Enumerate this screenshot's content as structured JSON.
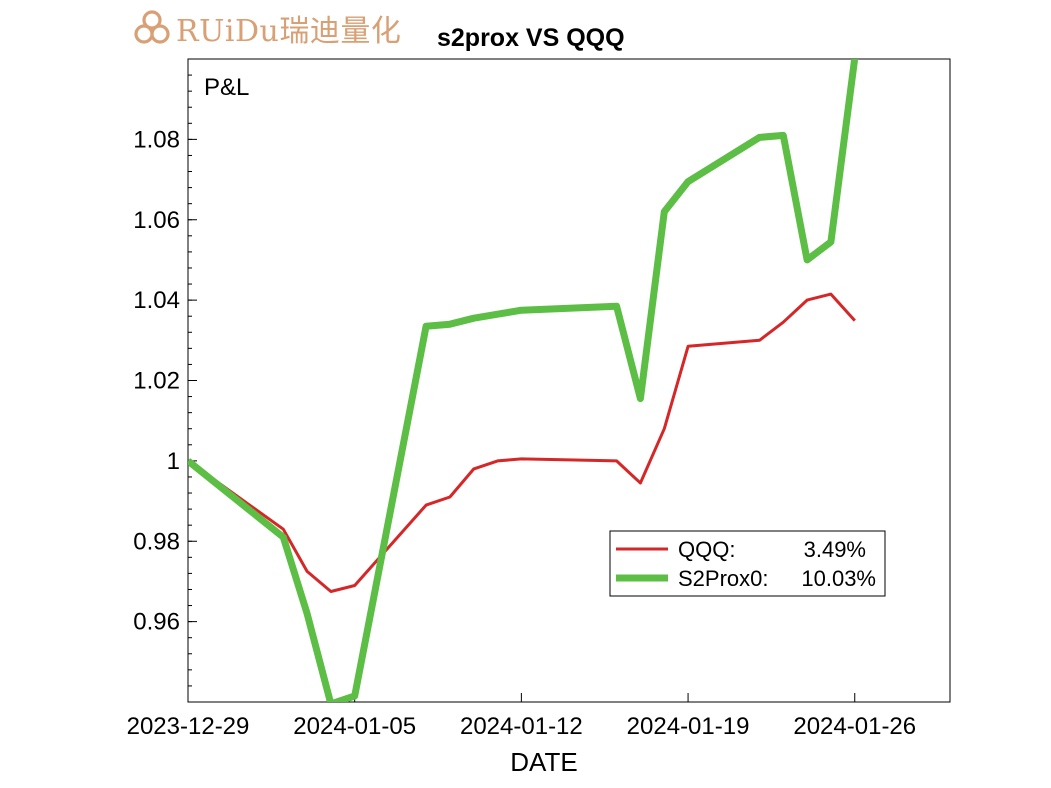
{
  "logo": {
    "text": "RUiDu瑞迪量化",
    "icon": "trefoil-knot-logo-icon",
    "color": "#d8a074"
  },
  "chart_data": {
    "type": "line",
    "title": "s2prox VS QQQ",
    "ylabel": "P&L",
    "xlabel": "DATE",
    "xlim": [
      "2023-12-29",
      "2024-01-30"
    ],
    "ylim": [
      0.94,
      1.1
    ],
    "x_tick_labels": [
      "2023-12-29",
      "2024-01-05",
      "2024-01-12",
      "2024-01-19",
      "2024-01-26"
    ],
    "y_tick_labels": [
      "0.96",
      "0.98",
      "1",
      "1.02",
      "1.04",
      "1.06",
      "1.08"
    ],
    "grid": false,
    "legend_position": "lower-right",
    "series": [
      {
        "name": "QQQ:",
        "legend_value": "3.49%",
        "color": "#d62728",
        "x": [
          "2023-12-29",
          "2024-01-02",
          "2024-01-03",
          "2024-01-04",
          "2024-01-05",
          "2024-01-08",
          "2024-01-09",
          "2024-01-10",
          "2024-01-11",
          "2024-01-12",
          "2024-01-16",
          "2024-01-17",
          "2024-01-18",
          "2024-01-19",
          "2024-01-22",
          "2024-01-23",
          "2024-01-24",
          "2024-01-25",
          "2024-01-26"
        ],
        "values": [
          1.0,
          0.983,
          0.9725,
          0.9675,
          0.969,
          0.989,
          0.991,
          0.998,
          1.0,
          1.0005,
          1.0,
          0.9945,
          1.008,
          1.0285,
          1.03,
          1.0345,
          1.04,
          1.0415,
          1.0349
        ]
      },
      {
        "name": "S2Prox0:",
        "legend_value": "10.03%",
        "color": "#5cbe45",
        "x": [
          "2023-12-29",
          "2024-01-02",
          "2024-01-03",
          "2024-01-04",
          "2024-01-05",
          "2024-01-08",
          "2024-01-09",
          "2024-01-10",
          "2024-01-11",
          "2024-01-12",
          "2024-01-16",
          "2024-01-17",
          "2024-01-18",
          "2024-01-19",
          "2024-01-22",
          "2024-01-23",
          "2024-01-24",
          "2024-01-25",
          "2024-01-26"
        ],
        "values": [
          1.0,
          0.981,
          0.962,
          0.9395,
          0.9415,
          1.0335,
          1.034,
          1.0355,
          1.0365,
          1.0375,
          1.0385,
          1.0155,
          1.062,
          1.0695,
          1.0805,
          1.081,
          1.05,
          1.0545,
          1.1003
        ]
      }
    ]
  }
}
